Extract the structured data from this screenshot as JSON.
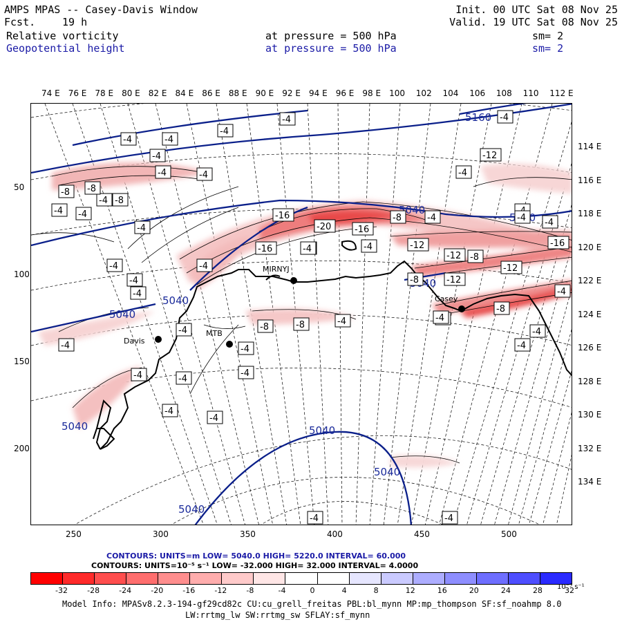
{
  "header": {
    "title": "AMPS MPAS -- Casey-Davis Window",
    "fcst_label": "Fcst.",
    "fcst_value": "19 h",
    "init": "Init. 00 UTC Sat 08 Nov 25",
    "valid": "Valid. 19 UTC Sat 08 Nov 25",
    "field1_name": "Relative vorticity",
    "field1_level": "at pressure =  500 hPa",
    "field1_sm": "sm= 2",
    "field2_name": "Geopotential height",
    "field2_level": "at pressure =  500 hPa",
    "field2_sm": "sm= 2"
  },
  "colors": {
    "height_contour": "#0a1f8a",
    "vort_fill_light": "#f5d0d0",
    "vort_fill_mid": "#ef9898",
    "vort_fill_strong": "#e85050"
  },
  "top_axis": [
    "74 E",
    "76 E",
    "78 E",
    "80 E",
    "82 E",
    "84 E",
    "86 E",
    "88 E",
    "90 E",
    "92 E",
    "94 E",
    "96 E",
    "98 E",
    "100",
    "102",
    "104",
    "106",
    "108",
    "110",
    "112 E"
  ],
  "right_axis": [
    "114 E",
    "116 E",
    "118 E",
    "120 E",
    "122 E",
    "124 E",
    "126 E",
    "128 E",
    "130 E",
    "132 E",
    "134 E"
  ],
  "left_axis": [
    "50",
    "100",
    "150",
    "200"
  ],
  "bottom_axis": [
    "250",
    "300",
    "350",
    "400",
    "450",
    "500"
  ],
  "stations": {
    "davis": "Davis",
    "mtb": "MTB",
    "mirny": "MIRNYJ",
    "casey": "Casey"
  },
  "height_labels": [
    "5160",
    "5040",
    "5040",
    "5040",
    "5040",
    "5040",
    "5040",
    "5040",
    "5040",
    "5040"
  ],
  "vort_labels": [
    "-4",
    "-4",
    "-4",
    "-4",
    "-4",
    "-8",
    "-8",
    "-8",
    "-4",
    "-4",
    "-4",
    "-4",
    "-16",
    "-20",
    "-16",
    "-16",
    "-4",
    "-12",
    "-12",
    "-8",
    "-16",
    "-12",
    "-12",
    "-8",
    "-8",
    "-4",
    "-4",
    "-8",
    "-8",
    "-8",
    "-4",
    "-4",
    "-4",
    "-4",
    "-4",
    "-4",
    "-4",
    "-4",
    "-4",
    "-4",
    "-4",
    "-4",
    "-4",
    "-4",
    "-4",
    "-4",
    "-4",
    "-4",
    "-4",
    "-4",
    "-4",
    "-4",
    "-4",
    "-4",
    "-4",
    "-4",
    "-4",
    "-4",
    "-12"
  ],
  "legend": {
    "contours1": "CONTOURS:  UNITS=m  LOW=  5040.0      HIGH=  5220.0      INTERVAL=   60.000",
    "contours2": "CONTOURS:  UNITS=10⁻⁵ s⁻¹  LOW= -32.000       HIGH=  32.000     INTERVAL=   4.0000",
    "colorbar_ticks": [
      "-32",
      "-28",
      "-24",
      "-20",
      "-16",
      "-12",
      "-8",
      "-4",
      "0",
      "4",
      "8",
      "12",
      "16",
      "20",
      "24",
      "28",
      "32"
    ],
    "colorbar_unit": "10⁻⁵ s⁻¹",
    "colorbar_colors": [
      "#ff0000",
      "#ff2a2a",
      "#ff4e4e",
      "#ff6e6e",
      "#ff8e8e",
      "#ffadad",
      "#ffcaca",
      "#ffe6e6",
      "#ffffff",
      "#ffffff",
      "#e6e6ff",
      "#cacaff",
      "#adadff",
      "#8e8eff",
      "#6e6eff",
      "#4e4eff",
      "#2a2aff"
    ]
  },
  "model_info": {
    "line1": "Model Info: MPASv8.2.3-194-gf29cd82c CU:cu_grell_freitas PBL:bl_mynn MP:mp_thompson SF:sf_noahmp 8.0",
    "line2": "LW:rrtmg_lw SW:rrtmg_sw SFLAY:sf_mynn"
  }
}
